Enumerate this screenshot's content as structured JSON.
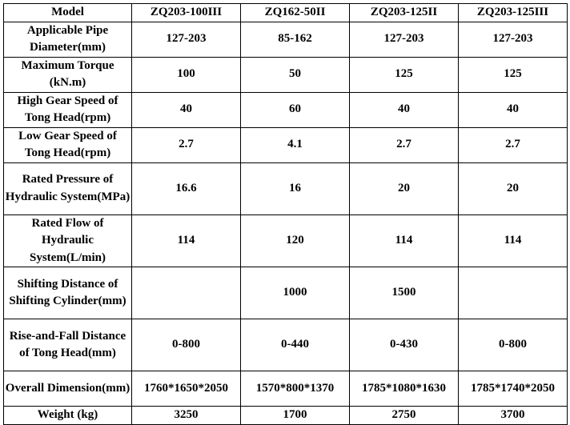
{
  "header": {
    "model_label": "Model",
    "models": [
      "ZQ203-100III",
      "ZQ162-50II",
      "ZQ203-125II",
      "ZQ203-125III"
    ]
  },
  "rows": [
    {
      "label": "Applicable Pipe Diameter(mm)",
      "values": [
        "127-203",
        "85-162",
        "127-203",
        "127-203"
      ]
    },
    {
      "label": "Maximum Torque (kN.m)",
      "values": [
        "100",
        "50",
        "125",
        "125"
      ]
    },
    {
      "label": "High Gear Speed of Tong Head(rpm)",
      "values": [
        "40",
        "60",
        "40",
        "40"
      ]
    },
    {
      "label": "Low Gear Speed of Tong Head(rpm)",
      "values": [
        "2.7",
        "4.1",
        "2.7",
        "2.7"
      ]
    },
    {
      "label": "Rated Pressure of Hydraulic System(MPa)",
      "values": [
        "16.6",
        "16",
        "20",
        "20"
      ]
    },
    {
      "label": "Rated Flow of Hydraulic System(L/min)",
      "values": [
        "114",
        "120",
        "114",
        "114"
      ]
    },
    {
      "label": "Shifting Distance of Shifting Cylinder(mm)",
      "values": [
        "",
        "1000",
        "1500",
        ""
      ]
    },
    {
      "label": "Rise-and-Fall Distance of Tong Head(mm)",
      "values": [
        "0-800",
        "0-440",
        "0-430",
        "0-800"
      ]
    },
    {
      "label": "Overall Dimension(mm)",
      "values": [
        "1760*1650*2050",
        "1570*800*1370",
        "1785*1080*1630",
        "1785*1740*2050"
      ]
    },
    {
      "label": "Weight (kg)",
      "values": [
        "3250",
        "1700",
        "2750",
        "3700"
      ]
    }
  ]
}
